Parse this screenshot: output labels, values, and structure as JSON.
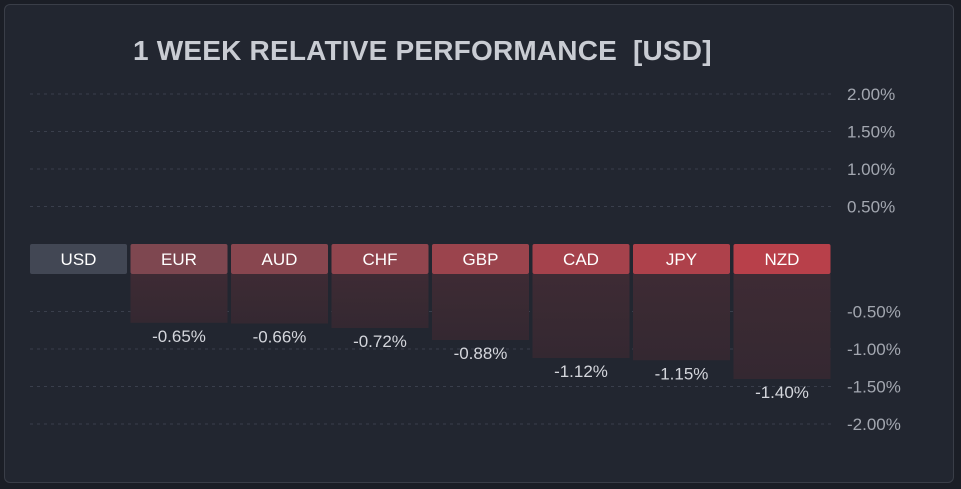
{
  "chart_data": {
    "type": "bar",
    "title": "1 WEEK RELATIVE PERFORMANCE  [USD]",
    "base_currency": "USD",
    "categories": [
      "EUR",
      "AUD",
      "CHF",
      "GBP",
      "CAD",
      "JPY",
      "NZD"
    ],
    "values": [
      -0.65,
      -0.66,
      -0.72,
      -0.88,
      -1.12,
      -1.15,
      -1.4
    ],
    "value_labels": [
      "-0.65%",
      "-0.66%",
      "-0.72%",
      "-0.88%",
      "-1.12%",
      "-1.15%",
      "-1.40%"
    ],
    "positive_ticks": [
      {
        "value": 2.0,
        "label": "2.00%"
      },
      {
        "value": 1.5,
        "label": "1.50%"
      },
      {
        "value": 1.0,
        "label": "1.00%"
      },
      {
        "value": 0.5,
        "label": "0.50%"
      }
    ],
    "negative_ticks": [
      {
        "value": -0.5,
        "label": "-0.50%"
      },
      {
        "value": -1.0,
        "label": "-1.00%"
      },
      {
        "value": -1.5,
        "label": "-1.50%"
      },
      {
        "value": -2.0,
        "label": "-2.00%"
      }
    ],
    "ylim": [
      -2.0,
      2.0
    ],
    "grid": true,
    "colors": {
      "base_chip": "#424754",
      "header_start": "#7e4750",
      "header_end": "#b8404a",
      "bar_fill_top": "#3e2b34",
      "bar_fill_bottom": "#342831"
    }
  }
}
